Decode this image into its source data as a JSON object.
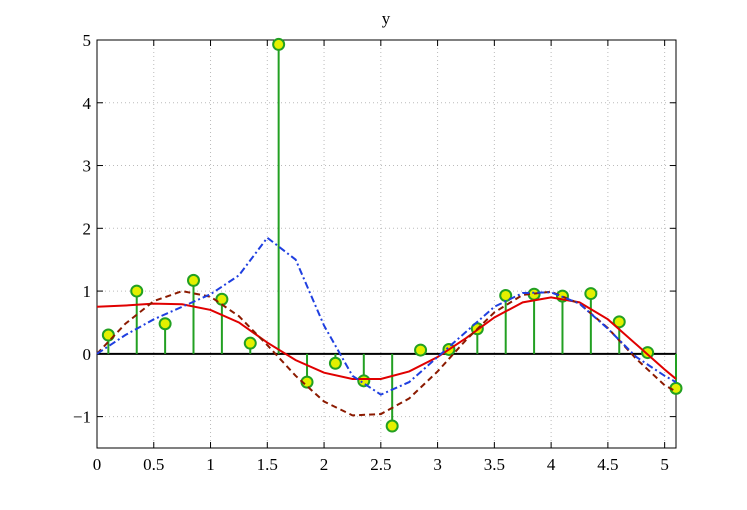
{
  "chart_data": {
    "type": "line",
    "title": "y",
    "xlim": [
      0,
      5.1
    ],
    "ylim": [
      -1.5,
      5
    ],
    "xticks": [
      0,
      0.5,
      1,
      1.5,
      2,
      2.5,
      3,
      3.5,
      4,
      4.5,
      5
    ],
    "yticks": [
      {
        "value": -1,
        "label": "−1"
      },
      0,
      1,
      2,
      3,
      4,
      5
    ],
    "grid": true,
    "series": [
      {
        "type": "line",
        "color": "#e00000",
        "dash": "solid",
        "x": [
          0,
          0.25,
          0.5,
          0.75,
          1,
          1.25,
          1.5,
          1.75,
          2,
          2.25,
          2.5,
          2.75,
          3,
          3.25,
          3.5,
          3.75,
          4,
          4.25,
          4.5,
          4.75,
          5,
          5.1
        ],
        "values": [
          0.75,
          0.77,
          0.8,
          0.79,
          0.7,
          0.5,
          0.18,
          -0.1,
          -0.3,
          -0.4,
          -0.4,
          -0.28,
          -0.05,
          0.25,
          0.58,
          0.82,
          0.9,
          0.82,
          0.55,
          0.15,
          -0.25,
          -0.4
        ]
      },
      {
        "type": "line",
        "color": "#8b1a00",
        "dash": "dashed",
        "x": [
          0,
          0.25,
          0.5,
          0.75,
          1,
          1.25,
          1.5,
          1.75,
          2,
          2.25,
          2.5,
          2.75,
          3,
          3.25,
          3.5,
          3.75,
          4,
          4.25,
          4.5,
          4.75,
          5,
          5.1
        ],
        "values": [
          0,
          0.48,
          0.84,
          1.0,
          0.91,
          0.6,
          0.14,
          -0.35,
          -0.76,
          -0.98,
          -0.96,
          -0.71,
          -0.28,
          0.22,
          0.66,
          0.94,
          0.99,
          0.8,
          0.41,
          -0.08,
          -0.5,
          -0.6
        ]
      },
      {
        "type": "line",
        "color": "#1f3fe0",
        "dash": "dashdot",
        "x": [
          0,
          0.25,
          0.5,
          0.75,
          1,
          1.25,
          1.5,
          1.75,
          2,
          2.25,
          2.5,
          2.75,
          3,
          3.25,
          3.5,
          3.75,
          4,
          4.25,
          4.5,
          4.75,
          5,
          5.1
        ],
        "values": [
          0,
          0.3,
          0.55,
          0.75,
          0.95,
          1.25,
          1.85,
          1.5,
          0.45,
          -0.35,
          -0.65,
          -0.45,
          -0.05,
          0.35,
          0.75,
          0.97,
          0.98,
          0.8,
          0.4,
          -0.05,
          -0.35,
          -0.45
        ]
      },
      {
        "type": "stem",
        "color": "#22a022",
        "marker_color": "#e4f000",
        "x": [
          0.1,
          0.35,
          0.6,
          0.85,
          1.1,
          1.35,
          1.6,
          1.85,
          2.1,
          2.35,
          2.6,
          2.85,
          3.1,
          3.35,
          3.6,
          3.85,
          4.1,
          4.35,
          4.6,
          4.85,
          5.1
        ],
        "values": [
          0.3,
          1.0,
          0.48,
          1.17,
          0.87,
          0.17,
          4.93,
          -0.45,
          -0.15,
          -0.43,
          -1.15,
          0.06,
          0.07,
          0.4,
          0.93,
          0.95,
          0.92,
          0.96,
          0.51,
          0.02,
          -0.55
        ]
      }
    ]
  }
}
